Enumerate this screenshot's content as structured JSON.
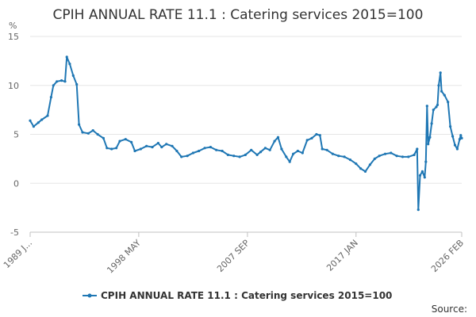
{
  "chart_data": {
    "type": "line",
    "title": "CPIH ANNUAL RATE 11.1 : Catering services 2015=100",
    "ylabel": "%",
    "xlabel": "",
    "ylim": [
      -5,
      15
    ],
    "yticks": [
      -5,
      0,
      5,
      10,
      15
    ],
    "xticks": [
      {
        "label": "1989 J...",
        "t": 1989.0
      },
      {
        "label": "1998 MAY",
        "t": 1998.33
      },
      {
        "label": "2007 SEP",
        "t": 2007.67
      },
      {
        "label": "2017 JAN",
        "t": 2017.0
      },
      {
        "label": "2026 FEB",
        "t": 2026.08
      }
    ],
    "xrange": [
      1989.0,
      2026.08
    ],
    "grid": true,
    "legend": "bottom-center",
    "series": [
      {
        "name": "CPIH ANNUAL RATE 11.1 : Catering services 2015=100",
        "color": "#1f77b4",
        "points": [
          [
            1989.0,
            6.4
          ],
          [
            1989.3,
            5.8
          ],
          [
            1989.7,
            6.2
          ],
          [
            1990.0,
            6.5
          ],
          [
            1990.5,
            6.9
          ],
          [
            1990.8,
            8.8
          ],
          [
            1991.0,
            10.0
          ],
          [
            1991.3,
            10.4
          ],
          [
            1991.7,
            10.5
          ],
          [
            1992.0,
            10.4
          ],
          [
            1992.15,
            12.9
          ],
          [
            1992.4,
            12.2
          ],
          [
            1992.7,
            11.0
          ],
          [
            1993.0,
            10.1
          ],
          [
            1993.2,
            6.0
          ],
          [
            1993.5,
            5.2
          ],
          [
            1994.0,
            5.1
          ],
          [
            1994.4,
            5.4
          ],
          [
            1994.8,
            5.0
          ],
          [
            1995.3,
            4.6
          ],
          [
            1995.6,
            3.6
          ],
          [
            1996.0,
            3.5
          ],
          [
            1996.4,
            3.6
          ],
          [
            1996.7,
            4.3
          ],
          [
            1997.2,
            4.5
          ],
          [
            1997.7,
            4.2
          ],
          [
            1998.0,
            3.3
          ],
          [
            1998.5,
            3.5
          ],
          [
            1999.0,
            3.8
          ],
          [
            1999.5,
            3.7
          ],
          [
            2000.0,
            4.1
          ],
          [
            2000.3,
            3.7
          ],
          [
            2000.7,
            4.0
          ],
          [
            2001.2,
            3.8
          ],
          [
            2001.6,
            3.3
          ],
          [
            2002.0,
            2.7
          ],
          [
            2002.5,
            2.8
          ],
          [
            2003.0,
            3.1
          ],
          [
            2003.5,
            3.3
          ],
          [
            2004.0,
            3.6
          ],
          [
            2004.5,
            3.7
          ],
          [
            2005.0,
            3.4
          ],
          [
            2005.5,
            3.3
          ],
          [
            2006.0,
            2.9
          ],
          [
            2006.5,
            2.8
          ],
          [
            2007.0,
            2.7
          ],
          [
            2007.5,
            2.9
          ],
          [
            2008.0,
            3.4
          ],
          [
            2008.5,
            2.9
          ],
          [
            2008.8,
            3.2
          ],
          [
            2009.2,
            3.6
          ],
          [
            2009.6,
            3.4
          ],
          [
            2010.0,
            4.3
          ],
          [
            2010.3,
            4.7
          ],
          [
            2010.6,
            3.5
          ],
          [
            2011.0,
            2.7
          ],
          [
            2011.3,
            2.2
          ],
          [
            2011.6,
            3.0
          ],
          [
            2012.0,
            3.3
          ],
          [
            2012.4,
            3.1
          ],
          [
            2012.8,
            4.4
          ],
          [
            2013.2,
            4.6
          ],
          [
            2013.6,
            5.0
          ],
          [
            2013.9,
            4.9
          ],
          [
            2014.1,
            3.5
          ],
          [
            2014.5,
            3.4
          ],
          [
            2015.0,
            3.0
          ],
          [
            2015.5,
            2.8
          ],
          [
            2016.0,
            2.7
          ],
          [
            2016.5,
            2.4
          ],
          [
            2017.0,
            2.0
          ],
          [
            2017.4,
            1.5
          ],
          [
            2017.8,
            1.2
          ],
          [
            2018.2,
            1.9
          ],
          [
            2018.6,
            2.5
          ],
          [
            2019.0,
            2.8
          ],
          [
            2019.5,
            3.0
          ],
          [
            2020.0,
            3.1
          ],
          [
            2020.5,
            2.8
          ],
          [
            2021.0,
            2.7
          ],
          [
            2021.5,
            2.7
          ],
          [
            2022.0,
            2.9
          ],
          [
            2022.25,
            3.5
          ],
          [
            2022.35,
            -2.7
          ],
          [
            2022.5,
            0.8
          ],
          [
            2022.7,
            1.2
          ],
          [
            2022.9,
            0.6
          ],
          [
            2023.0,
            2.2
          ],
          [
            2023.1,
            7.9
          ],
          [
            2023.2,
            4.0
          ],
          [
            2023.35,
            4.7
          ],
          [
            2023.5,
            6.1
          ],
          [
            2023.65,
            7.5
          ],
          [
            2023.9,
            7.8
          ],
          [
            2024.0,
            8.0
          ],
          [
            2024.1,
            10.0
          ],
          [
            2024.25,
            11.3
          ],
          [
            2024.35,
            9.4
          ],
          [
            2024.6,
            9.0
          ],
          [
            2024.9,
            8.3
          ],
          [
            2025.1,
            5.8
          ],
          [
            2025.3,
            4.8
          ],
          [
            2025.5,
            3.9
          ],
          [
            2025.7,
            3.5
          ],
          [
            2025.9,
            4.5
          ],
          [
            2026.0,
            4.9
          ],
          [
            2026.08,
            4.6
          ]
        ]
      }
    ],
    "source_label": "Source:"
  }
}
